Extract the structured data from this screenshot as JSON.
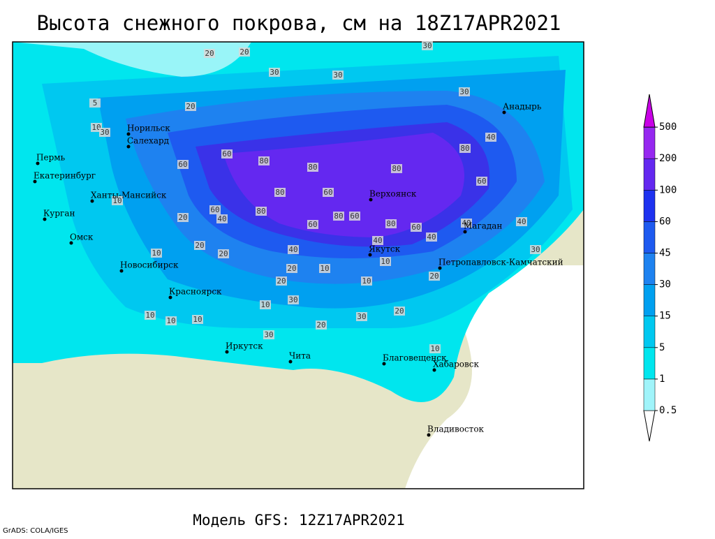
{
  "header": {
    "title": "Высота снежного покрова, см на 18Z17APR2021"
  },
  "footer": {
    "model": "Модель GFS: 12Z17APR2021",
    "credit": "GrADS: COLA/IGES"
  },
  "cities": [
    "Норильск",
    "Салехард",
    "Пермь",
    "Екатеринбург",
    "Ханты-Мансийск",
    "Курган",
    "Омск",
    "Новосибирск",
    "Красноярск",
    "Иркутск",
    "Чита",
    "Благовещенск",
    "Хабаровск",
    "Владивосток",
    "Якутск",
    "Верхоянск",
    "Магадан",
    "Петропавловск-Камчатский",
    "Анадырь"
  ],
  "legend": {
    "levels": [
      0.5,
      1,
      5,
      15,
      30,
      45,
      60,
      100,
      200,
      500
    ],
    "colors": [
      "#ffffff",
      "#a0f4fa",
      "#00e6ee",
      "#00c8f0",
      "#00a0f0",
      "#1e82f0",
      "#1e5af0",
      "#1e32f0",
      "#6428f0",
      "#9628f0",
      "#c800e6"
    ]
  },
  "contour_labels": [
    20,
    20,
    30,
    30,
    30,
    30,
    20,
    10,
    30,
    60,
    60,
    80,
    80,
    80,
    80,
    40,
    60,
    60,
    80,
    80,
    60,
    40,
    20,
    80,
    60,
    60,
    80,
    60,
    40,
    40,
    40,
    40,
    30,
    40,
    10,
    20,
    10,
    20,
    20,
    10,
    20,
    10,
    20,
    10,
    30,
    30,
    20,
    20,
    30,
    10,
    10,
    10,
    10,
    5,
    10
  ]
}
